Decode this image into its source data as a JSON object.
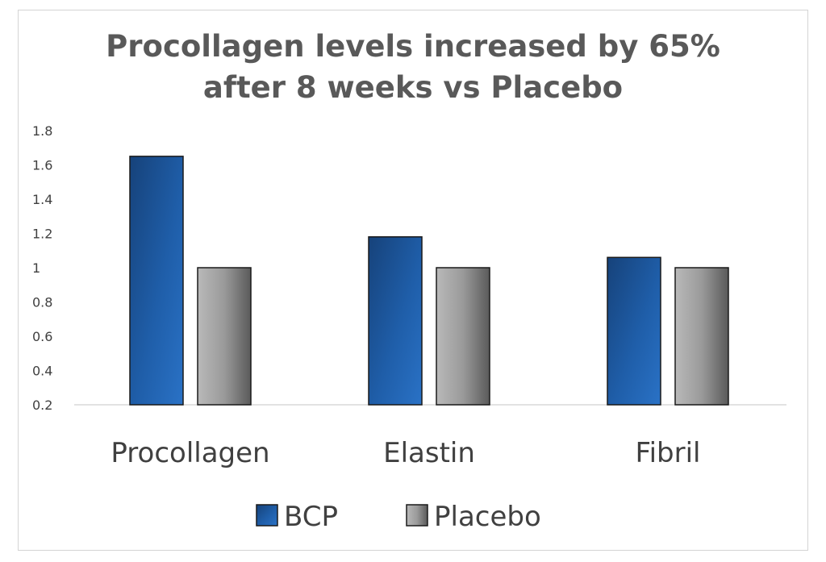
{
  "chart_data": {
    "type": "bar",
    "title_lines": [
      "Procollagen levels increased by 65%",
      "after 8 weeks vs Placebo"
    ],
    "categories": [
      "Procollagen",
      "Elastin",
      "Fibril"
    ],
    "series": [
      {
        "name": "BCP",
        "values": [
          1.65,
          1.18,
          1.06
        ],
        "color": "#1f5aa6"
      },
      {
        "name": "Placebo",
        "values": [
          1.0,
          1.0,
          1.0
        ],
        "color": "#8c8c8c"
      }
    ],
    "ylim": [
      0.2,
      1.8
    ],
    "yticks": [
      "1.8",
      "1.6",
      "1.4",
      "1.2",
      "1",
      "0.8",
      "0.6",
      "0.4",
      "0.2"
    ],
    "xlabel": "",
    "ylabel": "",
    "grid": false,
    "legend_position": "bottom"
  }
}
